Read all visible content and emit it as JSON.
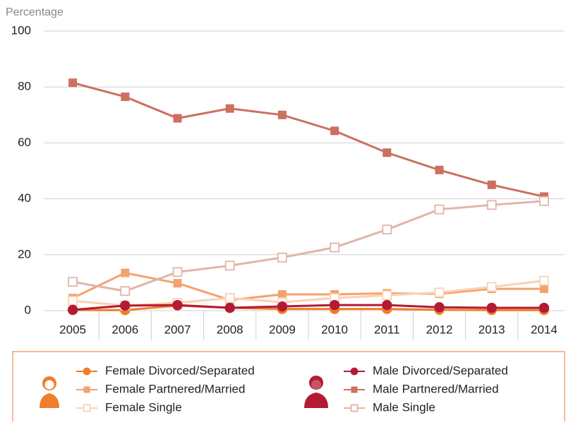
{
  "chart_data": {
    "type": "line",
    "y_axis_label": "Percentage",
    "categories": [
      "2005",
      "2006",
      "2007",
      "2008",
      "2009",
      "2010",
      "2011",
      "2012",
      "2013",
      "2014"
    ],
    "ylim": [
      0,
      100
    ],
    "yticks": [
      0,
      20,
      40,
      60,
      80,
      100
    ],
    "grid": true,
    "series": [
      {
        "name": "Female Divorced/Separated",
        "color": "#f07d2a",
        "marker": "circle",
        "values": [
          0.2,
          0.2,
          1.8,
          1,
          0.6,
          0.6,
          0.6,
          0.3,
          0.2,
          0.2
        ]
      },
      {
        "name": "Female Partnered/Married",
        "color": "#f4a26d",
        "marker": "square",
        "values": [
          4.5,
          13.5,
          9.8,
          3.8,
          5.8,
          5.8,
          6.2,
          6,
          7.8,
          7.8
        ]
      },
      {
        "name": "Female Single",
        "color": "#fbd2b0",
        "marker": "open-square",
        "values": [
          3.5,
          1.8,
          2.8,
          4.5,
          3,
          4.5,
          5.5,
          6.5,
          8.5,
          10.7
        ]
      },
      {
        "name": "Male Divorced/Separated",
        "color": "#b31b34",
        "marker": "circle",
        "values": [
          0.3,
          1.8,
          2,
          1,
          1.5,
          2,
          2,
          1.2,
          1,
          1
        ]
      },
      {
        "name": "Male Partnered/Married",
        "color": "#cc7060",
        "marker": "square",
        "values": [
          81.5,
          76.5,
          68.8,
          72.3,
          70,
          64.3,
          56.5,
          50.3,
          45,
          40.8
        ]
      },
      {
        "name": "Male Single",
        "color": "#e2b4a8",
        "marker": "open-square",
        "values": [
          10.3,
          7,
          13.8,
          16.1,
          19,
          22.6,
          29,
          36.2,
          37.8,
          39.2
        ]
      }
    ]
  }
}
